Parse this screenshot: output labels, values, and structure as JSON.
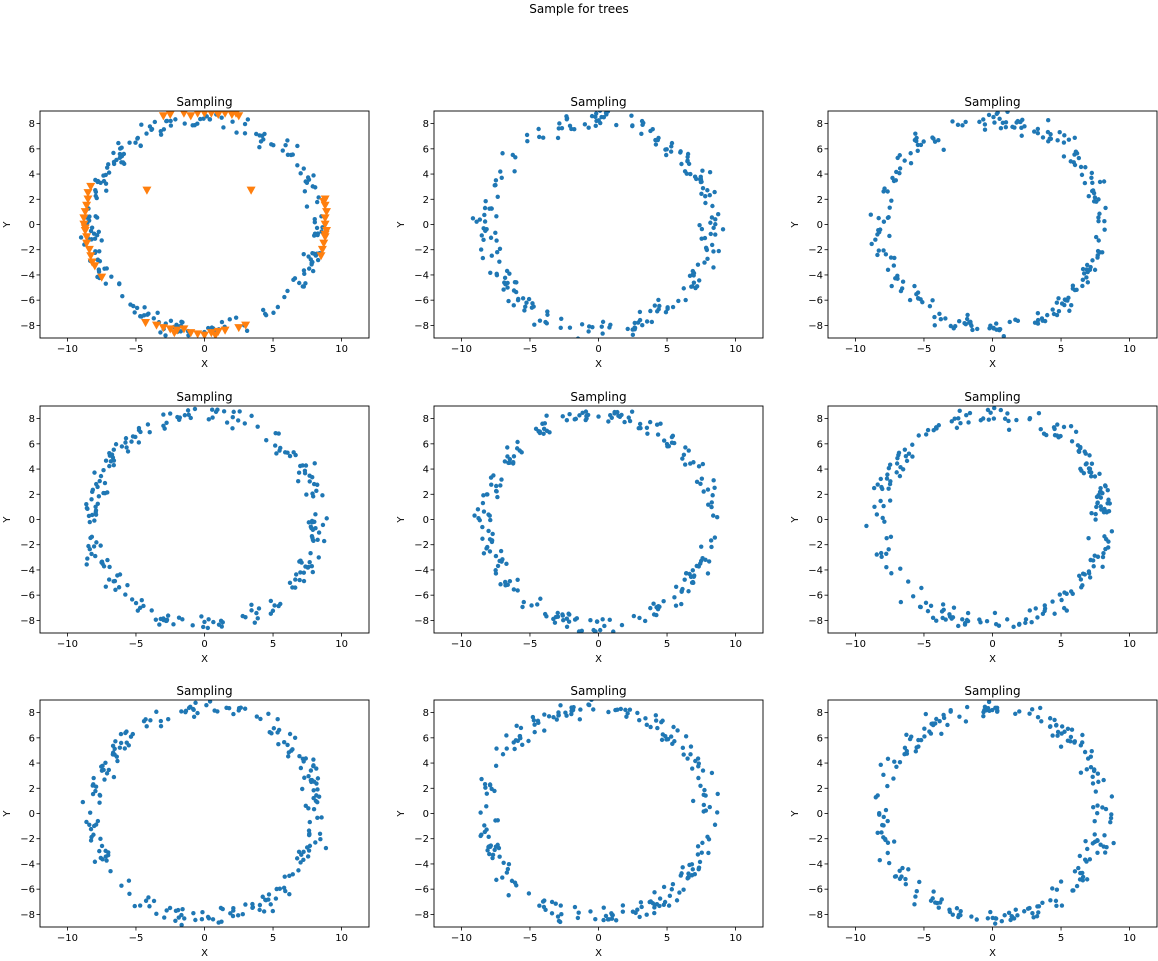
{
  "figure": {
    "suptitle": "Sample for trees"
  },
  "colors": {
    "background": "#ffffff",
    "base_points": "#1f77b4",
    "sample_points": "#ff7f0e",
    "axes": "#000000"
  },
  "chart_data": [
    {
      "type": "scatter",
      "title": "Sampling",
      "xlabel": "X",
      "ylabel": "Y",
      "xlim": [
        -12,
        12
      ],
      "ylim": [
        -9,
        9
      ],
      "xticks": [
        -10,
        -5,
        0,
        5,
        10
      ],
      "yticks": [
        -8,
        -6,
        -4,
        -2,
        0,
        2,
        4,
        6,
        8
      ],
      "grid": false,
      "series": [
        {
          "marker": "circle",
          "color": "#1f77b4",
          "ring": {
            "count": 220,
            "radius_x": 8.3,
            "radius_y": 8.3,
            "jitter": 0.6,
            "seed": 11
          }
        },
        {
          "marker": "triangle-down",
          "color": "#ff7f0e",
          "points": [
            [
              -1.5,
              8.8
            ],
            [
              -1.0,
              8.6
            ],
            [
              -0.5,
              8.8
            ],
            [
              0.5,
              8.8
            ],
            [
              1.0,
              8.7
            ],
            [
              1.5,
              8.8
            ],
            [
              2.0,
              8.7
            ],
            [
              2.5,
              8.6
            ],
            [
              -2.5,
              8.7
            ],
            [
              -3.0,
              8.6
            ],
            [
              0.0,
              8.8
            ],
            [
              2.3,
              8.8
            ],
            [
              -8.5,
              2.0
            ],
            [
              -8.6,
              1.5
            ],
            [
              -8.7,
              1.0
            ],
            [
              -8.8,
              0.5
            ],
            [
              -8.8,
              0.0
            ],
            [
              -8.7,
              -0.5
            ],
            [
              -8.6,
              -1.0
            ],
            [
              -8.6,
              -1.5
            ],
            [
              -8.4,
              -2.0
            ],
            [
              -8.3,
              -2.5
            ],
            [
              -8.2,
              -3.0
            ],
            [
              -8.0,
              -3.3
            ],
            [
              -8.3,
              3.0
            ],
            [
              -8.5,
              2.5
            ],
            [
              -7.5,
              -4.2
            ],
            [
              -8.7,
              -0.3
            ],
            [
              8.8,
              2.0
            ],
            [
              8.8,
              1.5
            ],
            [
              8.9,
              1.0
            ],
            [
              8.8,
              0.5
            ],
            [
              8.8,
              0.0
            ],
            [
              8.9,
              -0.5
            ],
            [
              8.8,
              -1.0
            ],
            [
              8.7,
              -1.5
            ],
            [
              8.6,
              -2.0
            ],
            [
              8.5,
              -2.5
            ],
            [
              8.8,
              -0.8
            ],
            [
              8.7,
              1.8
            ],
            [
              -3.5,
              -8.0
            ],
            [
              -3.0,
              -8.2
            ],
            [
              -2.5,
              -8.3
            ],
            [
              -2.0,
              -8.4
            ],
            [
              -1.5,
              -8.3
            ],
            [
              -1.0,
              -8.6
            ],
            [
              -0.5,
              -8.7
            ],
            [
              0.0,
              -8.8
            ],
            [
              0.5,
              -8.6
            ],
            [
              1.0,
              -8.5
            ],
            [
              1.5,
              -8.4
            ],
            [
              2.5,
              -8.2
            ],
            [
              3.0,
              -8.0
            ],
            [
              -4.3,
              -7.8
            ],
            [
              -2.2,
              -8.6
            ],
            [
              0.8,
              -8.8
            ],
            [
              -4.2,
              2.7
            ],
            [
              3.4,
              2.7
            ]
          ]
        }
      ]
    },
    {
      "type": "scatter",
      "title": "Sampling",
      "xlabel": "X",
      "ylabel": "Y",
      "xlim": [
        -12,
        12
      ],
      "ylim": [
        -9,
        9
      ],
      "xticks": [
        -10,
        -5,
        0,
        5,
        10
      ],
      "yticks": [
        -8,
        -6,
        -4,
        -2,
        0,
        2,
        4,
        6,
        8
      ],
      "grid": false,
      "series": [
        {
          "marker": "circle",
          "color": "#1f77b4",
          "ring": {
            "count": 220,
            "radius_x": 8.2,
            "radius_y": 8.3,
            "jitter": 0.65,
            "seed": 23
          }
        }
      ]
    },
    {
      "type": "scatter",
      "title": "Sampling",
      "xlabel": "X",
      "ylabel": "Y",
      "xlim": [
        -12,
        12
      ],
      "ylim": [
        -9,
        9
      ],
      "xticks": [
        -10,
        -5,
        0,
        5,
        10
      ],
      "yticks": [
        -8,
        -6,
        -4,
        -2,
        0,
        2,
        4,
        6,
        8
      ],
      "grid": false,
      "series": [
        {
          "marker": "circle",
          "color": "#1f77b4",
          "ring": {
            "count": 220,
            "radius_x": 8.1,
            "radius_y": 8.2,
            "jitter": 0.65,
            "seed": 37
          }
        }
      ]
    },
    {
      "type": "scatter",
      "title": "Sampling",
      "xlabel": "X",
      "ylabel": "Y",
      "xlim": [
        -12,
        12
      ],
      "ylim": [
        -9,
        9
      ],
      "xticks": [
        -10,
        -5,
        0,
        5,
        10
      ],
      "yticks": [
        -8,
        -6,
        -4,
        -2,
        0,
        2,
        4,
        6,
        8
      ],
      "grid": false,
      "series": [
        {
          "marker": "circle",
          "color": "#1f77b4",
          "ring": {
            "count": 220,
            "radius_x": 8.2,
            "radius_y": 8.3,
            "jitter": 0.6,
            "seed": 41
          }
        }
      ]
    },
    {
      "type": "scatter",
      "title": "Sampling",
      "xlabel": "X",
      "ylabel": "Y",
      "xlim": [
        -12,
        12
      ],
      "ylim": [
        -9,
        9
      ],
      "xticks": [
        -10,
        -5,
        0,
        5,
        10
      ],
      "yticks": [
        -8,
        -6,
        -4,
        -2,
        0,
        2,
        4,
        6,
        8
      ],
      "grid": false,
      "series": [
        {
          "marker": "circle",
          "color": "#1f77b4",
          "ring": {
            "count": 220,
            "radius_x": 8.2,
            "radius_y": 8.3,
            "jitter": 0.65,
            "seed": 53
          }
        }
      ]
    },
    {
      "type": "scatter",
      "title": "Sampling",
      "xlabel": "X",
      "ylabel": "Y",
      "xlim": [
        -12,
        12
      ],
      "ylim": [
        -9,
        9
      ],
      "xticks": [
        -10,
        -5,
        0,
        5,
        10
      ],
      "yticks": [
        -8,
        -6,
        -4,
        -2,
        0,
        2,
        4,
        6,
        8
      ],
      "grid": false,
      "series": [
        {
          "marker": "circle",
          "color": "#1f77b4",
          "ring": {
            "count": 220,
            "radius_x": 8.2,
            "radius_y": 8.3,
            "jitter": 0.65,
            "seed": 67
          }
        }
      ]
    },
    {
      "type": "scatter",
      "title": "Sampling",
      "xlabel": "X",
      "ylabel": "Y",
      "xlim": [
        -12,
        12
      ],
      "ylim": [
        -9,
        9
      ],
      "xticks": [
        -10,
        -5,
        0,
        5,
        10
      ],
      "yticks": [
        -8,
        -6,
        -4,
        -2,
        0,
        2,
        4,
        6,
        8
      ],
      "grid": false,
      "series": [
        {
          "marker": "circle",
          "color": "#1f77b4",
          "ring": {
            "count": 220,
            "radius_x": 8.2,
            "radius_y": 8.3,
            "jitter": 0.65,
            "seed": 79
          }
        }
      ]
    },
    {
      "type": "scatter",
      "title": "Sampling",
      "xlabel": "X",
      "ylabel": "Y",
      "xlim": [
        -12,
        12
      ],
      "ylim": [
        -9,
        9
      ],
      "xticks": [
        -10,
        -5,
        0,
        5,
        10
      ],
      "yticks": [
        -8,
        -6,
        -4,
        -2,
        0,
        2,
        4,
        6,
        8
      ],
      "grid": false,
      "series": [
        {
          "marker": "circle",
          "color": "#1f77b4",
          "ring": {
            "count": 220,
            "radius_x": 8.1,
            "radius_y": 8.3,
            "jitter": 0.65,
            "seed": 83
          }
        }
      ]
    },
    {
      "type": "scatter",
      "title": "Sampling",
      "xlabel": "X",
      "ylabel": "Y",
      "xlim": [
        -12,
        12
      ],
      "ylim": [
        -9,
        9
      ],
      "xticks": [
        -10,
        -5,
        0,
        5,
        10
      ],
      "yticks": [
        -8,
        -6,
        -4,
        -2,
        0,
        2,
        4,
        6,
        8
      ],
      "grid": false,
      "series": [
        {
          "marker": "circle",
          "color": "#1f77b4",
          "ring": {
            "count": 220,
            "radius_x": 8.2,
            "radius_y": 8.3,
            "jitter": 0.65,
            "seed": 97
          }
        }
      ]
    }
  ]
}
